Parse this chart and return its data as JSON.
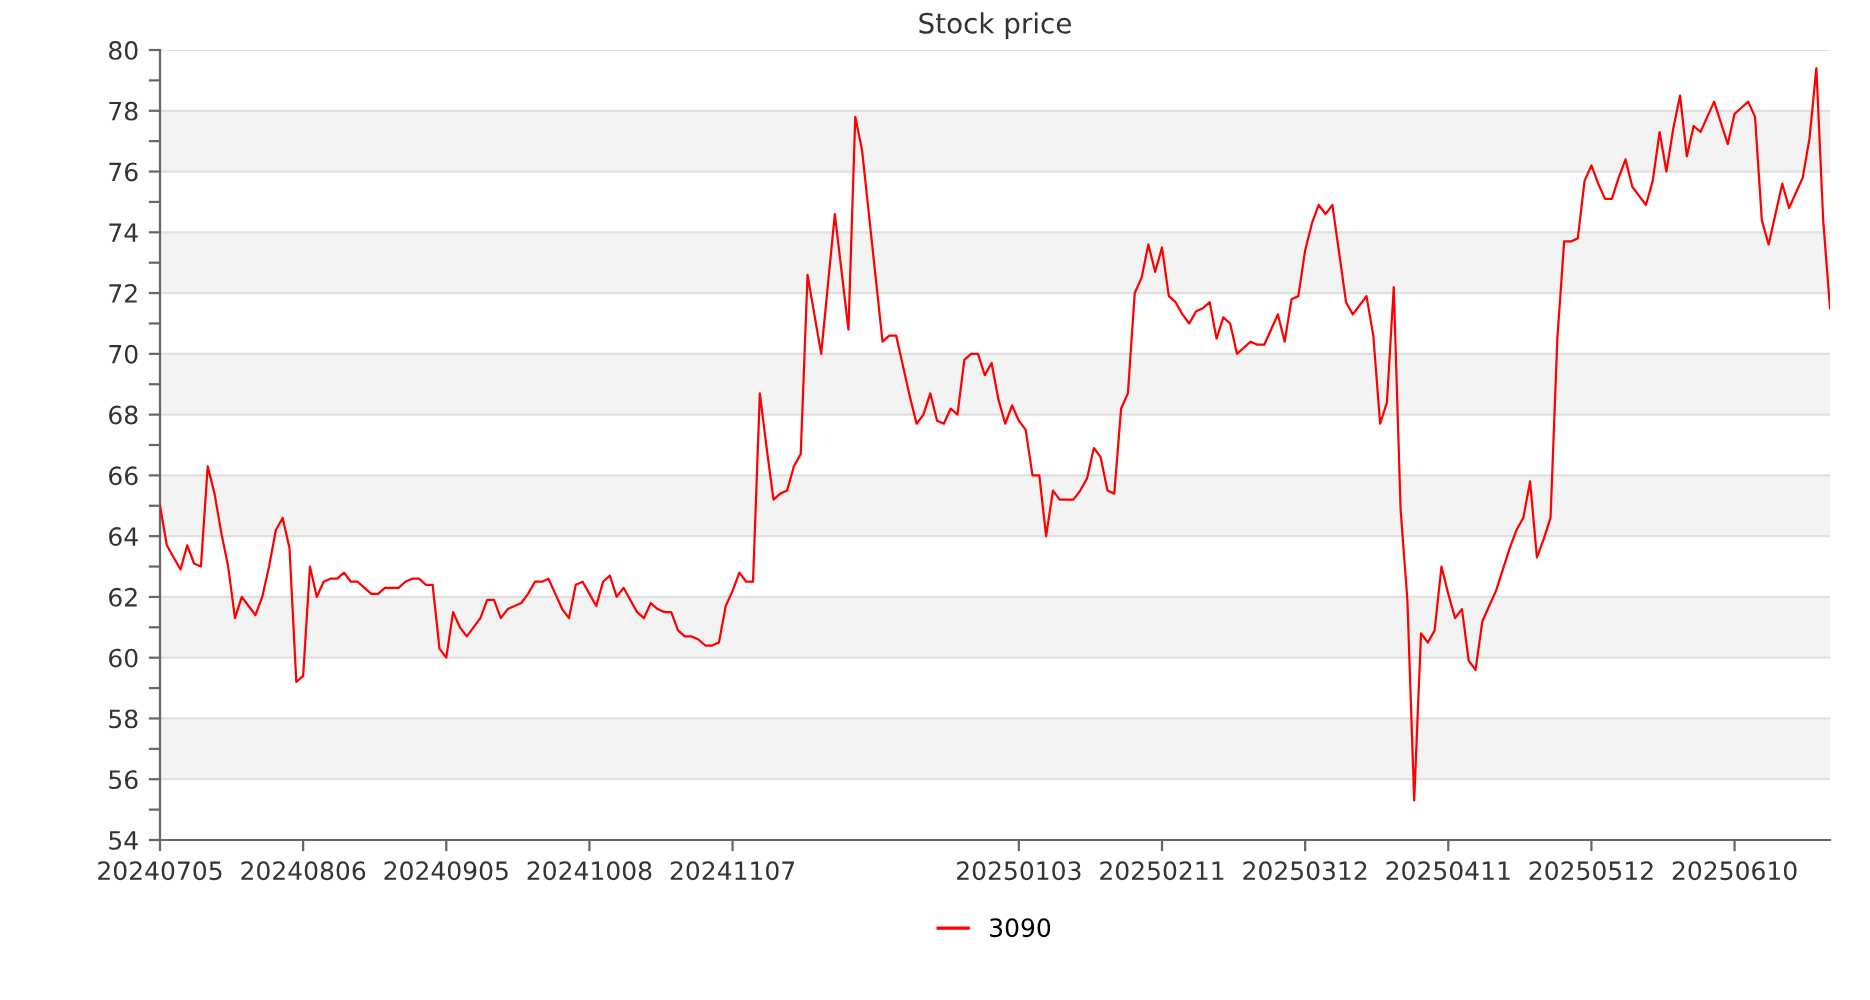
{
  "chart_data": {
    "type": "line",
    "title": "Stock price",
    "categories": [
      "20240705",
      null,
      null,
      null,
      null,
      null,
      null,
      null,
      null,
      null,
      null,
      null,
      null,
      null,
      null,
      null,
      null,
      null,
      null,
      null,
      null,
      "20240806",
      null,
      null,
      null,
      null,
      null,
      null,
      null,
      null,
      null,
      null,
      null,
      null,
      null,
      null,
      null,
      null,
      null,
      null,
      null,
      null,
      "20240905",
      null,
      null,
      null,
      null,
      null,
      null,
      null,
      null,
      null,
      null,
      null,
      null,
      null,
      null,
      null,
      null,
      null,
      null,
      null,
      null,
      "20241008",
      null,
      null,
      null,
      null,
      null,
      null,
      null,
      null,
      null,
      null,
      null,
      null,
      null,
      null,
      null,
      null,
      null,
      null,
      null,
      null,
      "20241107",
      null,
      null,
      null,
      null,
      null,
      null,
      null,
      null,
      null,
      null,
      null,
      null,
      null,
      null,
      null,
      null,
      null,
      null,
      null,
      null,
      null,
      null,
      null,
      null,
      null,
      null,
      null,
      null,
      null,
      null,
      null,
      null,
      null,
      null,
      null,
      null,
      null,
      null,
      null,
      null,
      null,
      "20250103",
      null,
      null,
      null,
      null,
      null,
      null,
      null,
      null,
      null,
      null,
      null,
      null,
      null,
      null,
      null,
      null,
      null,
      null,
      null,
      null,
      "20250211",
      null,
      null,
      null,
      null,
      null,
      null,
      null,
      null,
      null,
      null,
      null,
      null,
      null,
      null,
      null,
      null,
      null,
      null,
      null,
      null,
      "20250312",
      null,
      null,
      null,
      null,
      null,
      null,
      null,
      null,
      null,
      null,
      null,
      null,
      null,
      null,
      null,
      null,
      null,
      null,
      null,
      null,
      "20250411",
      null,
      null,
      null,
      null,
      null,
      null,
      null,
      null,
      null,
      null,
      null,
      null,
      null,
      null,
      null,
      null,
      null,
      null,
      null,
      null,
      "20250512",
      null,
      null,
      null,
      null,
      null,
      null,
      null,
      null,
      null,
      null,
      null,
      null,
      null,
      null,
      null,
      null,
      null,
      null,
      null,
      null,
      "20250610",
      null,
      null,
      null,
      null,
      null,
      null,
      null,
      null,
      null,
      null,
      null,
      null,
      null,
      null
    ],
    "ylim": [
      54,
      80
    ],
    "yticks": [
      54,
      {
        "value": 55,
        "label": null
      },
      56,
      {
        "value": 57,
        "label": null
      },
      58,
      {
        "value": 59,
        "label": null
      },
      60,
      {
        "value": 61,
        "label": null
      },
      62,
      {
        "value": 63,
        "label": null
      },
      64,
      {
        "value": 65,
        "label": null
      },
      66,
      {
        "value": 67,
        "label": null
      },
      68,
      {
        "value": 69,
        "label": null
      },
      70,
      {
        "value": 71,
        "label": null
      },
      72,
      {
        "value": 73,
        "label": null
      },
      74,
      {
        "value": 75,
        "label": null
      },
      76,
      {
        "value": 77,
        "label": null
      },
      78,
      {
        "value": 79,
        "label": null
      },
      80
    ],
    "grid": "y",
    "legend": "bottom",
    "marker": "none",
    "line_style": "solid",
    "series": [
      {
        "name": "3090",
        "color": "#ff0000",
        "values": [
          65.0,
          63.7,
          63.3,
          62.9,
          63.7,
          63.1,
          63.0,
          66.3,
          65.4,
          64.1,
          63.0,
          61.3,
          62.0,
          61.7,
          61.4,
          62.0,
          63.0,
          64.2,
          64.6,
          63.6,
          59.2,
          59.4,
          63.0,
          62.0,
          62.5,
          62.6,
          62.6,
          62.8,
          62.5,
          62.5,
          62.3,
          62.1,
          62.1,
          62.3,
          62.3,
          62.3,
          62.5,
          62.6,
          62.6,
          62.4,
          62.4,
          60.3,
          60.0,
          61.5,
          61.0,
          60.7,
          61.0,
          61.3,
          61.9,
          61.9,
          61.3,
          61.6,
          61.7,
          61.8,
          62.1,
          62.5,
          62.5,
          62.6,
          62.1,
          61.6,
          61.3,
          62.4,
          62.5,
          62.1,
          61.7,
          62.5,
          62.7,
          62.0,
          62.3,
          61.9,
          61.5,
          61.3,
          61.8,
          61.6,
          61.5,
          61.5,
          60.9,
          60.7,
          60.7,
          60.6,
          60.4,
          60.4,
          60.5,
          61.7,
          62.2,
          62.8,
          62.5,
          62.5,
          68.7,
          66.9,
          65.2,
          65.4,
          65.5,
          66.3,
          66.7,
          72.6,
          71.3,
          70.0,
          72.3,
          74.6,
          72.7,
          70.8,
          77.8,
          76.7,
          74.6,
          72.5,
          70.4,
          70.6,
          70.6,
          69.6,
          68.6,
          67.7,
          68.0,
          68.7,
          67.8,
          67.7,
          68.2,
          68.0,
          69.8,
          70.0,
          70.0,
          69.3,
          69.7,
          68.5,
          67.7,
          68.3,
          67.8,
          67.5,
          66.0,
          66.0,
          64.0,
          65.5,
          65.2,
          65.2,
          65.2,
          65.5,
          65.9,
          66.9,
          66.6,
          65.5,
          65.4,
          68.2,
          68.7,
          72.0,
          72.5,
          73.6,
          72.7,
          73.5,
          71.9,
          71.7,
          71.3,
          71.0,
          71.4,
          71.5,
          71.7,
          70.5,
          71.2,
          71.0,
          70.0,
          70.2,
          70.4,
          70.3,
          70.3,
          70.8,
          71.3,
          70.4,
          71.8,
          71.9,
          73.4,
          74.3,
          74.9,
          74.6,
          74.9,
          73.3,
          71.7,
          71.3,
          71.6,
          71.9,
          70.6,
          67.7,
          68.4,
          72.2,
          64.9,
          61.9,
          55.3,
          60.8,
          60.5,
          60.9,
          63.0,
          62.1,
          61.3,
          61.6,
          59.9,
          59.6,
          61.2,
          61.7,
          62.2,
          62.9,
          63.6,
          64.2,
          64.6,
          65.8,
          63.3,
          63.9,
          64.6,
          70.5,
          73.7,
          73.7,
          73.8,
          75.7,
          76.2,
          75.6,
          75.1,
          75.1,
          75.8,
          76.4,
          75.5,
          75.2,
          74.9,
          75.7,
          77.3,
          76.0,
          77.4,
          78.5,
          76.5,
          77.5,
          77.3,
          77.8,
          78.3,
          77.6,
          76.9,
          77.9,
          78.1,
          78.3,
          77.8,
          74.4,
          73.6,
          74.6,
          75.6,
          74.8,
          75.3,
          75.8,
          77.1,
          79.4,
          74.4,
          71.5
        ]
      }
    ]
  }
}
